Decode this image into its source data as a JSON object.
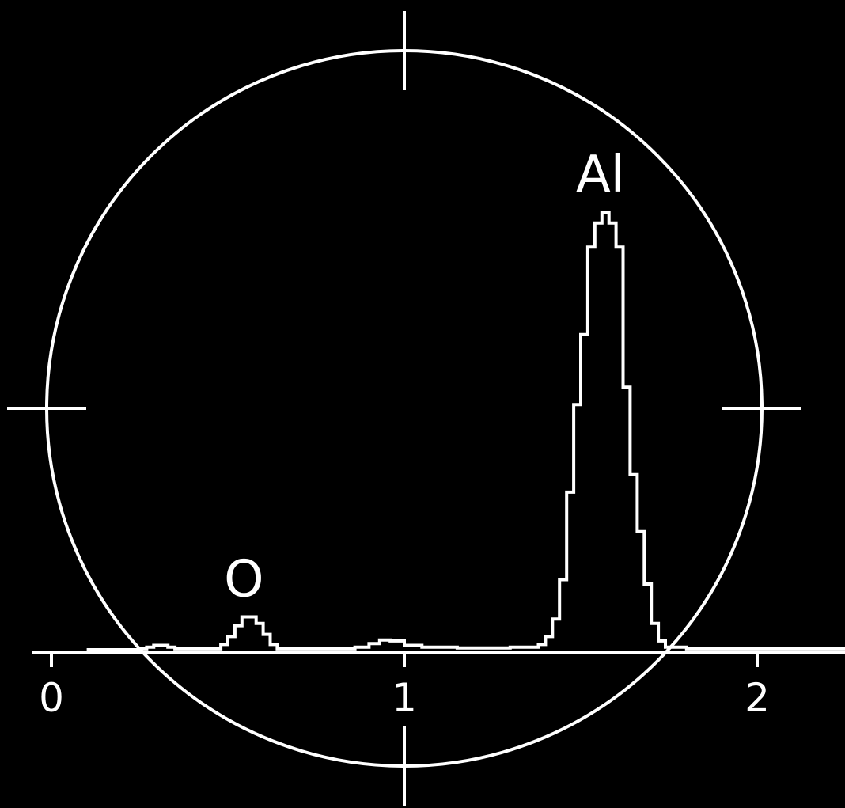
{
  "chart_data": {
    "type": "line",
    "title": "",
    "xlabel": "",
    "ylabel": "",
    "xlim": [
      -0.05,
      2.4
    ],
    "ylim": [
      0,
      1.0
    ],
    "x_ticks": [
      "0",
      "1",
      "2"
    ],
    "x_tick_values": [
      0,
      1,
      2
    ],
    "grid": false,
    "legend": "none",
    "line_color": "#ffffff",
    "background_color": "#000000",
    "series": [
      {
        "values": [
          [
            0.1,
            0.0
          ],
          [
            0.25,
            0.002
          ],
          [
            0.27,
            0.006
          ],
          [
            0.29,
            0.01
          ],
          [
            0.31,
            0.01
          ],
          [
            0.33,
            0.006
          ],
          [
            0.35,
            0.002
          ],
          [
            0.46,
            0.002
          ],
          [
            0.48,
            0.012
          ],
          [
            0.5,
            0.03
          ],
          [
            0.52,
            0.055
          ],
          [
            0.54,
            0.075
          ],
          [
            0.56,
            0.075
          ],
          [
            0.58,
            0.06
          ],
          [
            0.6,
            0.035
          ],
          [
            0.62,
            0.012
          ],
          [
            0.64,
            0.002
          ],
          [
            0.82,
            0.002
          ],
          [
            0.86,
            0.006
          ],
          [
            0.9,
            0.014
          ],
          [
            0.93,
            0.022
          ],
          [
            0.96,
            0.02
          ],
          [
            1.0,
            0.01
          ],
          [
            1.05,
            0.006
          ],
          [
            1.15,
            0.004
          ],
          [
            1.3,
            0.006
          ],
          [
            1.38,
            0.012
          ],
          [
            1.4,
            0.03
          ],
          [
            1.42,
            0.07
          ],
          [
            1.44,
            0.16
          ],
          [
            1.46,
            0.36
          ],
          [
            1.48,
            0.56
          ],
          [
            1.5,
            0.72
          ],
          [
            1.52,
            0.92
          ],
          [
            1.54,
            0.975
          ],
          [
            1.56,
            1.0
          ],
          [
            1.58,
            0.975
          ],
          [
            1.6,
            0.92
          ],
          [
            1.62,
            0.6
          ],
          [
            1.64,
            0.4
          ],
          [
            1.66,
            0.27
          ],
          [
            1.68,
            0.15
          ],
          [
            1.7,
            0.06
          ],
          [
            1.72,
            0.02
          ],
          [
            1.74,
            0.006
          ],
          [
            1.8,
            0.002
          ],
          [
            2.0,
            0.002
          ],
          [
            2.4,
            0.002
          ]
        ]
      }
    ],
    "annotations": [
      {
        "text": "O",
        "x": 0.55,
        "y": 0.075
      },
      {
        "text": "Al",
        "x": 1.56,
        "y": 1.0
      }
    ]
  }
}
